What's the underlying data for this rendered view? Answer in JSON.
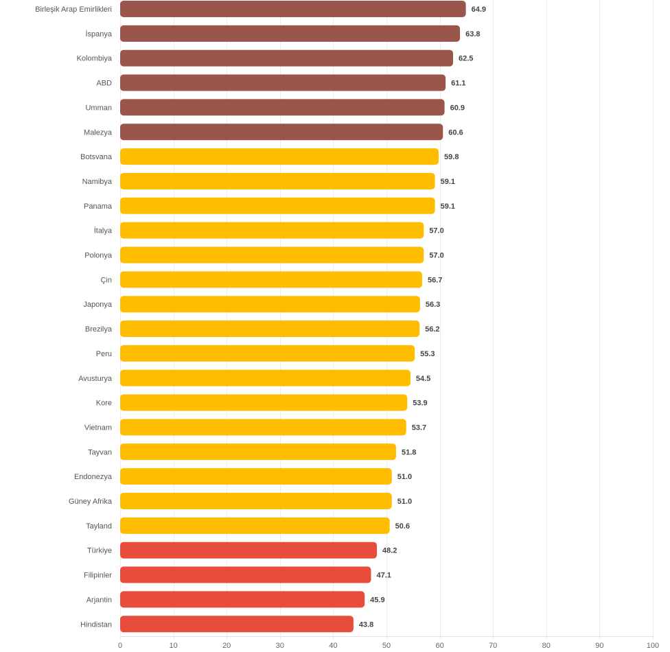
{
  "chart_data": {
    "type": "bar",
    "orientation": "horizontal",
    "title": "",
    "xlabel": "",
    "ylabel": "",
    "xlim": [
      0,
      100
    ],
    "x_ticks": [
      0,
      10,
      20,
      30,
      40,
      50,
      60,
      70,
      80,
      90,
      100
    ],
    "grid": true,
    "legend": "none",
    "categories": [
      "Birleşik Arap Emirlikleri",
      "İspanya",
      "Kolombiya",
      "ABD",
      "Umman",
      "Malezya",
      "Botsvana",
      "Namibya",
      "Panama",
      "İtalya",
      "Polonya",
      "Çin",
      "Japonya",
      "Brezilya",
      "Peru",
      "Avusturya",
      "Kore",
      "Vietnam",
      "Tayvan",
      "Endonezya",
      "Güney Afrika",
      "Tayland",
      "Türkiye",
      "Filipinler",
      "Arjantin",
      "Hindistan"
    ],
    "values": [
      64.9,
      63.8,
      62.5,
      61.1,
      60.9,
      60.6,
      59.8,
      59.1,
      59.1,
      57.0,
      57.0,
      56.7,
      56.3,
      56.2,
      55.3,
      54.5,
      53.9,
      53.7,
      51.8,
      51.0,
      51.0,
      50.6,
      48.2,
      47.1,
      45.9,
      43.8
    ],
    "value_labels": [
      "64.9",
      "63.8",
      "62.5",
      "61.1",
      "60.9",
      "60.6",
      "59.8",
      "59.1",
      "59.1",
      "57.0",
      "57.0",
      "56.7",
      "56.3",
      "56.2",
      "55.3",
      "54.5",
      "53.9",
      "53.7",
      "51.8",
      "51.0",
      "51.0",
      "50.6",
      "48.2",
      "47.1",
      "45.9",
      "43.8"
    ],
    "color_groups": [
      "high",
      "high",
      "high",
      "high",
      "high",
      "high",
      "mid",
      "mid",
      "mid",
      "mid",
      "mid",
      "mid",
      "mid",
      "mid",
      "mid",
      "mid",
      "mid",
      "mid",
      "mid",
      "mid",
      "mid",
      "mid",
      "low",
      "low",
      "low",
      "low"
    ],
    "colors": {
      "high": "#9b564b",
      "mid": "#ffbd00",
      "low": "#e74c3c"
    }
  }
}
